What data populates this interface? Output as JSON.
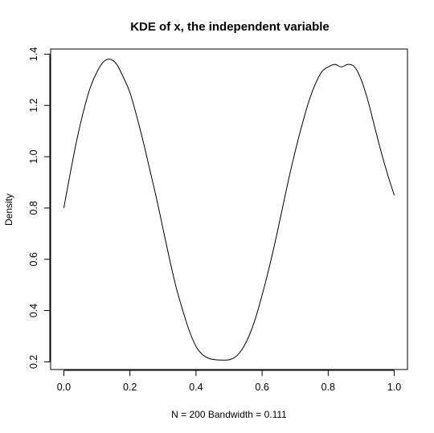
{
  "chart_data": {
    "type": "line",
    "title": "KDE of x, the independent variable",
    "xlabel": "N = 200   Bandwidth = 0.111",
    "ylabel": "Density",
    "xlim": [
      -0.04,
      1.04
    ],
    "ylim": [
      0.17,
      1.42
    ],
    "xticks": [
      0.0,
      0.2,
      0.4,
      0.6,
      0.8,
      1.0
    ],
    "xtick_labels": [
      "0.0",
      "0.2",
      "0.4",
      "0.6",
      "0.8",
      "1.0"
    ],
    "yticks": [
      0.2,
      0.4,
      0.6,
      0.8,
      1.0,
      1.2,
      1.4
    ],
    "ytick_labels": [
      "0.2",
      "0.4",
      "0.6",
      "0.8",
      "1.0",
      "1.2",
      "1.4"
    ],
    "grid": false,
    "series": [
      {
        "x": [
          0.0,
          0.02,
          0.04,
          0.06,
          0.08,
          0.1,
          0.12,
          0.14,
          0.16,
          0.18,
          0.2,
          0.22,
          0.24,
          0.26,
          0.28,
          0.3,
          0.32,
          0.34,
          0.36,
          0.38,
          0.4,
          0.42,
          0.44,
          0.46,
          0.48,
          0.5,
          0.52,
          0.54,
          0.56,
          0.58,
          0.6,
          0.62,
          0.64,
          0.66,
          0.68,
          0.7,
          0.72,
          0.74,
          0.76,
          0.78,
          0.8,
          0.82,
          0.84,
          0.86,
          0.88,
          0.9,
          0.92,
          0.94,
          0.96,
          0.98,
          1.0
        ],
        "values": [
          0.8,
          0.94,
          1.07,
          1.18,
          1.27,
          1.33,
          1.37,
          1.38,
          1.36,
          1.31,
          1.25,
          1.16,
          1.06,
          0.95,
          0.84,
          0.72,
          0.6,
          0.49,
          0.4,
          0.32,
          0.26,
          0.228,
          0.213,
          0.208,
          0.207,
          0.208,
          0.22,
          0.25,
          0.3,
          0.37,
          0.46,
          0.56,
          0.67,
          0.79,
          0.91,
          1.02,
          1.12,
          1.21,
          1.28,
          1.33,
          1.35,
          1.36,
          1.35,
          1.36,
          1.35,
          1.3,
          1.22,
          1.12,
          1.02,
          0.93,
          0.85
        ]
      }
    ]
  }
}
